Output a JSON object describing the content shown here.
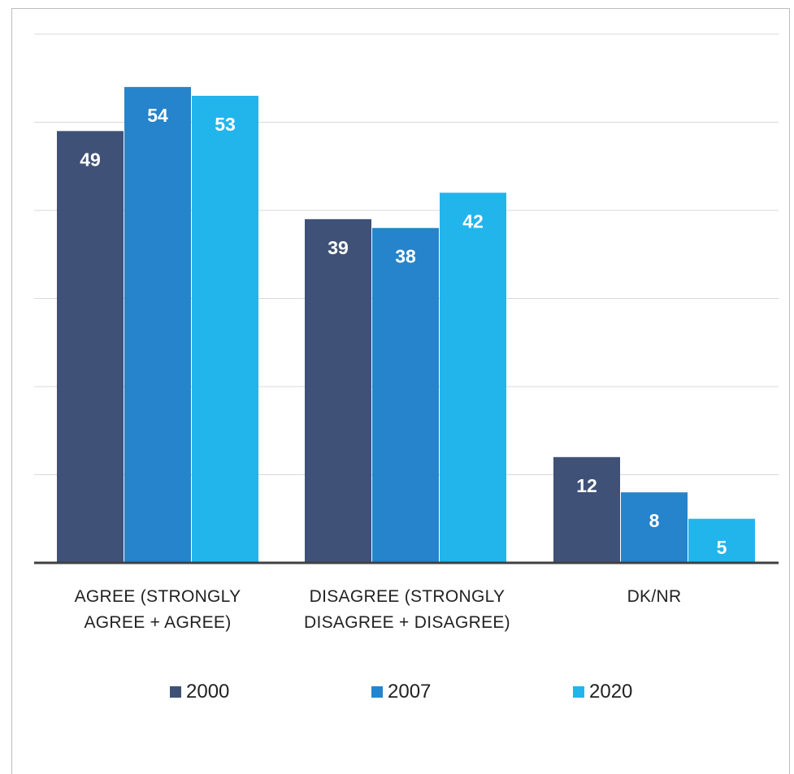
{
  "chart_data": {
    "type": "bar",
    "title": "",
    "xlabel": "",
    "ylabel": "",
    "ylim": [
      0,
      60
    ],
    "grid": true,
    "legend_position": "bottom",
    "categories": [
      "AGREE (STRONGLY AGREE + AGREE)",
      "DISAGREE (STRONGLY DISAGREE + DISAGREE)",
      "DK/NR"
    ],
    "category_label_lines": [
      [
        "AGREE (STRONGLY",
        "AGREE + AGREE)"
      ],
      [
        "DISAGREE (STRONGLY",
        "DISAGREE + DISAGREE)"
      ],
      [
        "DK/NR"
      ]
    ],
    "series": [
      {
        "name": "2000",
        "color": "#3f5176",
        "values": [
          49,
          39,
          12
        ]
      },
      {
        "name": "2007",
        "color": "#2584cb",
        "values": [
          54,
          38,
          8
        ]
      },
      {
        "name": "2020",
        "color": "#22b5ec",
        "values": [
          53,
          42,
          5
        ]
      }
    ]
  }
}
